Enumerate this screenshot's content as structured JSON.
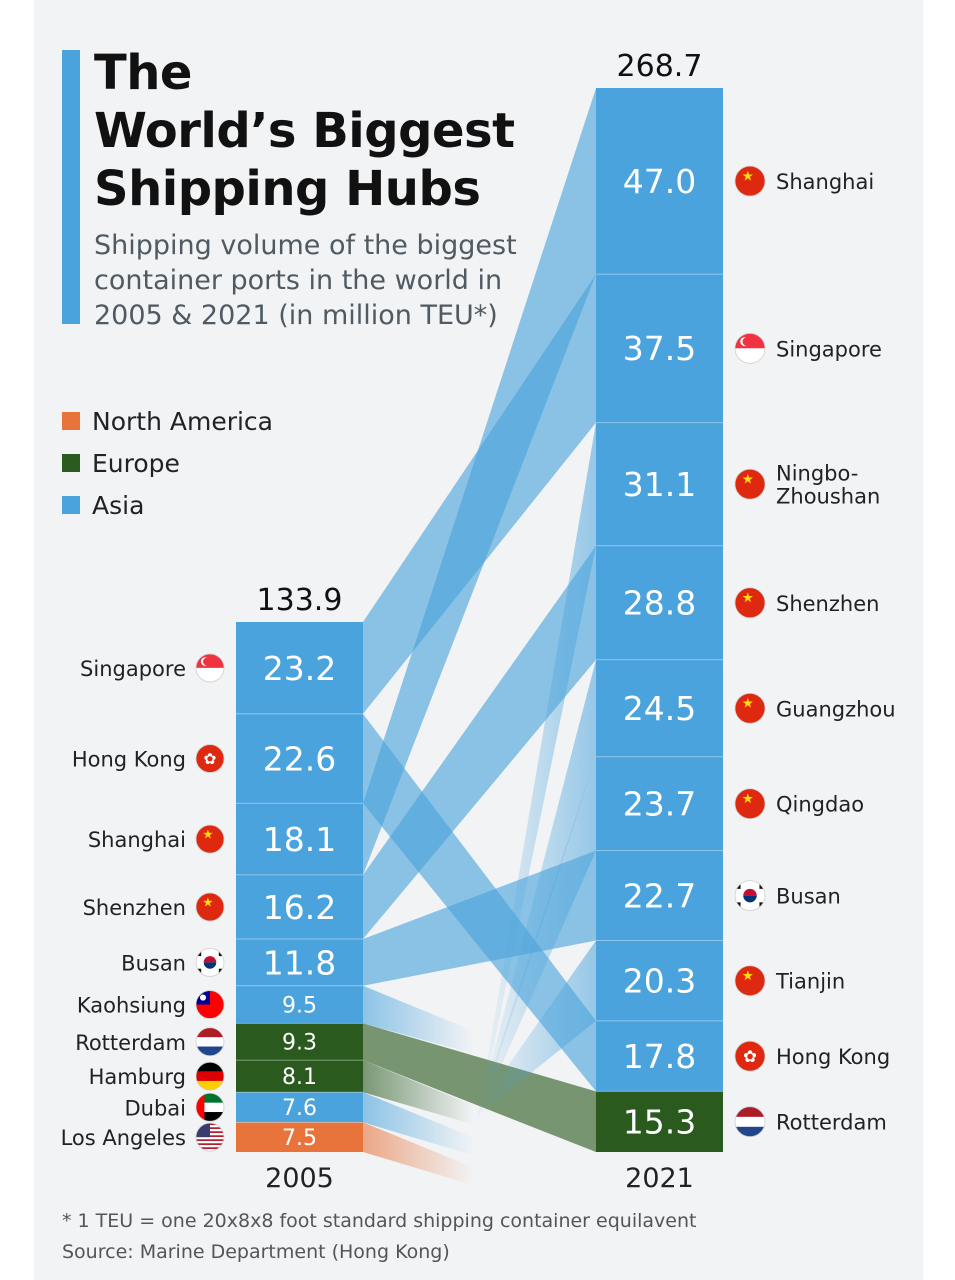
{
  "header": {
    "title": "The\nWorld’s Biggest\nShipping Hubs",
    "subtitle": "Shipping volume of the biggest container ports in the world in 2005 & 2021 (in million TEU*)"
  },
  "legend": [
    {
      "label": "North America",
      "color": "#e8743b"
    },
    {
      "label": "Europe",
      "color": "#2a5a1e"
    },
    {
      "label": "Asia",
      "color": "#4aa3dc"
    }
  ],
  "footer": {
    "note": "* 1 TEU = one 20x8x8 foot standard shipping container equilavent",
    "source": "Source: Marine Department (Hong Kong)"
  },
  "chart_data": {
    "type": "stacked-bar-flow",
    "unit": "million TEU",
    "columns": [
      {
        "year": "2005",
        "total": "133.9",
        "ports": [
          {
            "port": "Singapore",
            "value": 23.2,
            "label": "23.2",
            "region": "Asia",
            "flag": "singapore-flag"
          },
          {
            "port": "Hong Kong",
            "value": 22.6,
            "label": "22.6",
            "region": "Asia",
            "flag": "hong-kong-flag"
          },
          {
            "port": "Shanghai",
            "value": 18.1,
            "label": "18.1",
            "region": "Asia",
            "flag": "china-flag"
          },
          {
            "port": "Shenzhen",
            "value": 16.2,
            "label": "16.2",
            "region": "Asia",
            "flag": "china-flag"
          },
          {
            "port": "Busan",
            "value": 11.8,
            "label": "11.8",
            "region": "Asia",
            "flag": "south-korea-flag"
          },
          {
            "port": "Kaohsiung",
            "value": 9.5,
            "label": "9.5",
            "region": "Asia",
            "flag": "taiwan-flag"
          },
          {
            "port": "Rotterdam",
            "value": 9.3,
            "label": "9.3",
            "region": "Europe",
            "flag": "netherlands-flag"
          },
          {
            "port": "Hamburg",
            "value": 8.1,
            "label": "8.1",
            "region": "Europe",
            "flag": "germany-flag"
          },
          {
            "port": "Dubai",
            "value": 7.6,
            "label": "7.6",
            "region": "Asia",
            "flag": "uae-flag"
          },
          {
            "port": "Los Angeles",
            "value": 7.5,
            "label": "7.5",
            "region": "North America",
            "flag": "usa-flag"
          }
        ]
      },
      {
        "year": "2021",
        "total": "268.7",
        "ports": [
          {
            "port": "Shanghai",
            "value": 47.0,
            "label": "47.0",
            "region": "Asia",
            "flag": "china-flag"
          },
          {
            "port": "Singapore",
            "value": 37.5,
            "label": "37.5",
            "region": "Asia",
            "flag": "singapore-flag"
          },
          {
            "port": "Ningbo-\nZhoushan",
            "value": 31.1,
            "label": "31.1",
            "region": "Asia",
            "flag": "china-flag"
          },
          {
            "port": "Shenzhen",
            "value": 28.8,
            "label": "28.8",
            "region": "Asia",
            "flag": "china-flag"
          },
          {
            "port": "Guangzhou",
            "value": 24.5,
            "label": "24.5",
            "region": "Asia",
            "flag": "china-flag"
          },
          {
            "port": "Qingdao",
            "value": 23.7,
            "label": "23.7",
            "region": "Asia",
            "flag": "china-flag"
          },
          {
            "port": "Busan",
            "value": 22.7,
            "label": "22.7",
            "region": "Asia",
            "flag": "south-korea-flag"
          },
          {
            "port": "Tianjin",
            "value": 20.3,
            "label": "20.3",
            "region": "Asia",
            "flag": "china-flag"
          },
          {
            "port": "Hong Kong",
            "value": 17.8,
            "label": "17.8",
            "region": "Asia",
            "flag": "hong-kong-flag"
          },
          {
            "port": "Rotterdam",
            "value": 15.3,
            "label": "15.3",
            "region": "Europe",
            "flag": "netherlands-flag"
          }
        ]
      }
    ]
  }
}
